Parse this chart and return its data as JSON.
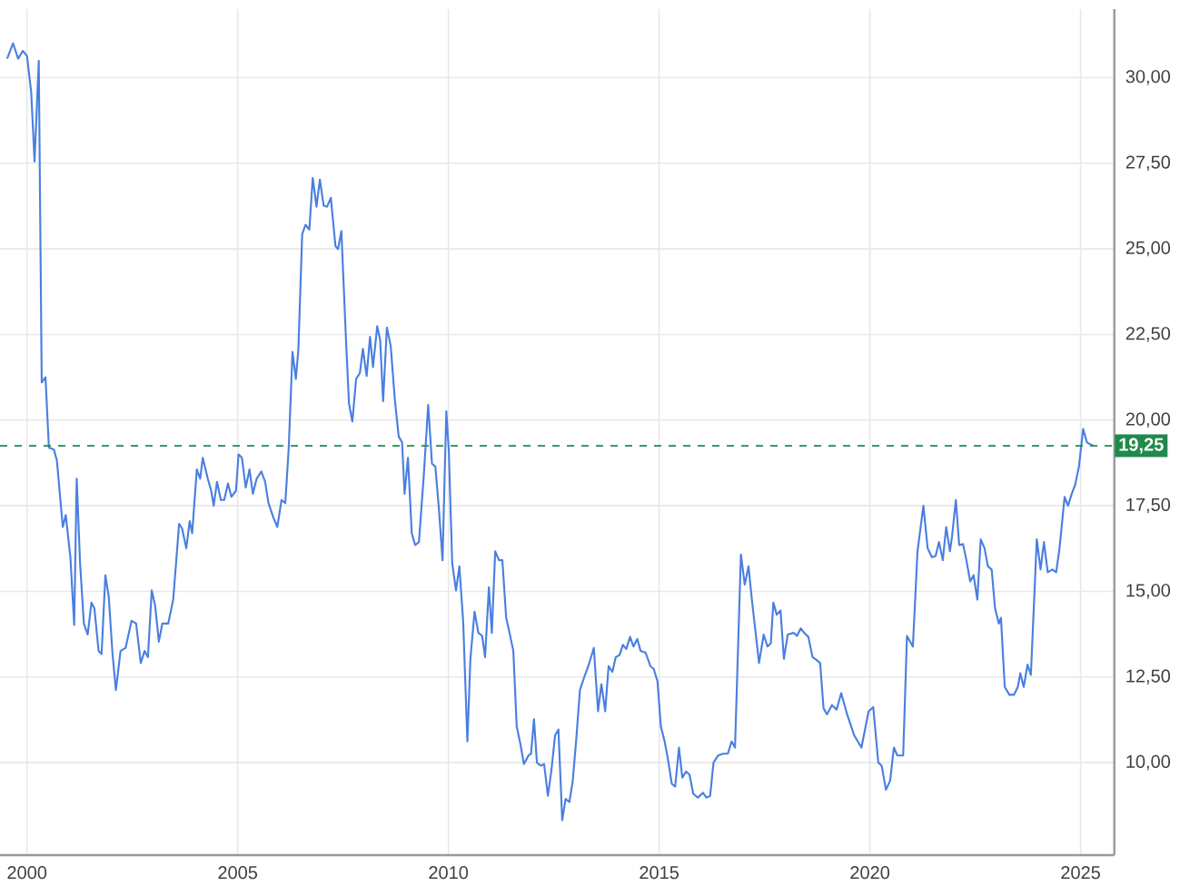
{
  "chart_data": {
    "type": "line",
    "x": [
      1999.53,
      1999.67,
      1999.79,
      1999.9,
      2000.0,
      2000.1,
      2000.18,
      2000.28,
      2000.35,
      2000.44,
      2000.52,
      2000.64,
      2000.71,
      2000.85,
      2000.92,
      2001.03,
      2001.12,
      2001.18,
      2001.26,
      2001.35,
      2001.44,
      2001.53,
      2001.6,
      2001.7,
      2001.77,
      2001.86,
      2001.94,
      2002.03,
      2002.11,
      2002.22,
      2002.34,
      2002.48,
      2002.59,
      2002.7,
      2002.79,
      2002.87,
      2002.96,
      2003.04,
      2003.13,
      2003.21,
      2003.35,
      2003.47,
      2003.61,
      2003.68,
      2003.78,
      2003.86,
      2003.92,
      2004.03,
      2004.11,
      2004.17,
      2004.29,
      2004.37,
      2004.43,
      2004.51,
      2004.6,
      2004.68,
      2004.77,
      2004.85,
      2004.96,
      2005.02,
      2005.1,
      2005.19,
      2005.28,
      2005.36,
      2005.45,
      2005.56,
      2005.65,
      2005.73,
      2005.85,
      2005.94,
      2006.04,
      2006.13,
      2006.21,
      2006.3,
      2006.38,
      2006.44,
      2006.53,
      2006.61,
      2006.7,
      2006.78,
      2006.87,
      2006.95,
      2007.04,
      2007.12,
      2007.21,
      2007.32,
      2007.38,
      2007.46,
      2007.57,
      2007.64,
      2007.72,
      2007.81,
      2007.9,
      2007.97,
      2008.06,
      2008.14,
      2008.21,
      2008.31,
      2008.38,
      2008.45,
      2008.54,
      2008.63,
      2008.73,
      2008.82,
      2008.9,
      2008.96,
      2009.04,
      2009.13,
      2009.21,
      2009.3,
      2009.41,
      2009.52,
      2009.61,
      2009.69,
      2009.78,
      2009.86,
      2009.95,
      2010.01,
      2010.09,
      2010.18,
      2010.26,
      2010.35,
      2010.45,
      2010.52,
      2010.62,
      2010.71,
      2010.8,
      2010.87,
      2010.96,
      2011.03,
      2011.11,
      2011.2,
      2011.28,
      2011.37,
      2011.45,
      2011.54,
      2011.62,
      2011.71,
      2011.79,
      2011.9,
      2011.96,
      2012.03,
      2012.1,
      2012.19,
      2012.27,
      2012.36,
      2012.44,
      2012.53,
      2012.61,
      2012.7,
      2012.78,
      2012.87,
      2012.95,
      2013.04,
      2013.12,
      2013.24,
      2013.32,
      2013.45,
      2013.55,
      2013.63,
      2013.72,
      2013.8,
      2013.89,
      2013.97,
      2014.06,
      2014.14,
      2014.22,
      2014.31,
      2014.39,
      2014.48,
      2014.56,
      2014.68,
      2014.79,
      2014.87,
      2014.96,
      2015.04,
      2015.13,
      2015.21,
      2015.3,
      2015.38,
      2015.47,
      2015.55,
      2015.64,
      2015.72,
      2015.81,
      2015.92,
      2016.04,
      2016.12,
      2016.21,
      2016.29,
      2016.4,
      2016.52,
      2016.63,
      2016.72,
      2016.8,
      2016.94,
      2017.03,
      2017.12,
      2017.2,
      2017.37,
      2017.48,
      2017.57,
      2017.65,
      2017.71,
      2017.79,
      2017.88,
      2017.96,
      2018.05,
      2018.19,
      2018.27,
      2018.36,
      2018.44,
      2018.54,
      2018.64,
      2018.73,
      2018.82,
      2018.9,
      2018.98,
      2019.1,
      2019.21,
      2019.32,
      2019.46,
      2019.63,
      2019.8,
      2019.97,
      2020.08,
      2020.2,
      2020.28,
      2020.38,
      2020.48,
      2020.57,
      2020.65,
      2020.79,
      2020.88,
      2021.02,
      2021.13,
      2021.27,
      2021.37,
      2021.47,
      2021.56,
      2021.64,
      2021.73,
      2021.81,
      2021.9,
      2021.95,
      2022.04,
      2022.12,
      2022.21,
      2022.29,
      2022.38,
      2022.46,
      2022.55,
      2022.63,
      2022.72,
      2022.8,
      2022.89,
      2022.97,
      2023.06,
      2023.11,
      2023.2,
      2023.31,
      2023.42,
      2023.51,
      2023.57,
      2023.65,
      2023.74,
      2023.82,
      2023.96,
      2024.05,
      2024.13,
      2024.22,
      2024.33,
      2024.42,
      2024.5,
      2024.62,
      2024.7,
      2024.79,
      2024.87,
      2024.96,
      2025.06,
      2025.15,
      2025.3
    ],
    "series": [
      {
        "color": "#4a7fe0",
        "values": [
          30.55,
          31.0,
          30.55,
          30.78,
          30.63,
          29.58,
          27.55,
          30.49,
          21.1,
          21.25,
          19.2,
          19.14,
          18.82,
          16.88,
          17.23,
          16.0,
          14.02,
          18.29,
          15.82,
          14.06,
          13.74,
          14.67,
          14.5,
          13.26,
          13.17,
          15.47,
          14.85,
          13.17,
          12.12,
          13.26,
          13.35,
          14.14,
          14.06,
          12.91,
          13.26,
          13.08,
          15.03,
          14.59,
          13.53,
          14.06,
          14.06,
          14.76,
          16.97,
          16.84,
          16.26,
          17.05,
          16.7,
          18.56,
          18.29,
          18.9,
          18.29,
          17.94,
          17.5,
          18.2,
          17.67,
          17.67,
          18.15,
          17.76,
          17.94,
          19.0,
          18.9,
          18.03,
          18.56,
          17.85,
          18.29,
          18.5,
          18.2,
          17.58,
          17.14,
          16.88,
          17.67,
          17.58,
          19.17,
          21.99,
          21.2,
          22.08,
          25.43,
          25.7,
          25.56,
          27.07,
          26.23,
          27.02,
          26.26,
          26.23,
          26.49,
          25.08,
          24.99,
          25.52,
          22.34,
          20.49,
          19.96,
          21.2,
          21.38,
          22.08,
          21.29,
          22.43,
          21.55,
          22.74,
          22.34,
          20.55,
          22.7,
          22.17,
          20.58,
          19.52,
          19.35,
          17.85,
          18.9,
          16.7,
          16.35,
          16.44,
          18.29,
          20.44,
          18.73,
          18.64,
          17.32,
          15.91,
          20.26,
          19.08,
          15.82,
          15.03,
          15.73,
          14.12,
          10.62,
          13.0,
          14.41,
          13.79,
          13.7,
          13.08,
          15.12,
          13.79,
          16.17,
          15.91,
          15.91,
          14.23,
          13.79,
          13.26,
          11.06,
          10.53,
          9.96,
          10.21,
          10.26,
          11.27,
          10.0,
          9.91,
          9.96,
          9.03,
          9.74,
          10.79,
          10.97,
          8.32,
          8.94,
          8.85,
          9.47,
          10.79,
          12.12,
          12.56,
          12.82,
          13.35,
          11.5,
          12.29,
          11.5,
          12.82,
          12.65,
          13.08,
          13.14,
          13.44,
          13.32,
          13.67,
          13.39,
          13.61,
          13.26,
          13.21,
          12.82,
          12.74,
          12.38,
          11.06,
          10.62,
          10.09,
          9.38,
          9.3,
          10.44,
          9.56,
          9.74,
          9.65,
          9.09,
          8.98,
          9.12,
          8.98,
          9.03,
          10.0,
          10.21,
          10.26,
          10.26,
          10.62,
          10.44,
          16.08,
          15.2,
          15.73,
          14.76,
          12.91,
          13.74,
          13.39,
          13.49,
          14.67,
          14.32,
          14.44,
          13.03,
          13.74,
          13.79,
          13.7,
          13.92,
          13.79,
          13.67,
          13.08,
          13.0,
          12.91,
          11.59,
          11.41,
          11.68,
          11.55,
          12.03,
          11.41,
          10.79,
          10.44,
          11.5,
          11.62,
          10.0,
          9.91,
          9.21,
          9.47,
          10.44,
          10.21,
          10.21,
          13.7,
          13.39,
          16.17,
          17.5,
          16.26,
          16.0,
          16.03,
          16.44,
          15.91,
          16.88,
          16.17,
          16.61,
          17.67,
          16.35,
          16.38,
          15.91,
          15.29,
          15.47,
          14.76,
          16.52,
          16.26,
          15.73,
          15.64,
          14.5,
          14.06,
          14.23,
          12.21,
          11.98,
          11.98,
          12.21,
          12.61,
          12.21,
          12.86,
          12.56,
          16.52,
          15.64,
          16.44,
          15.56,
          15.64,
          15.56,
          16.26,
          17.76,
          17.5,
          17.85,
          18.11,
          18.64,
          19.74,
          19.35,
          19.25
        ]
      }
    ],
    "xlim": [
      1999.36,
      2025.8
    ],
    "ylim": [
      7.3,
      32.0
    ],
    "xticks": [
      2000,
      2005,
      2010,
      2015,
      2020,
      2025
    ],
    "yticks": [
      {
        "value": 10,
        "label": "10,00"
      },
      {
        "value": 12.5,
        "label": "12,50"
      },
      {
        "value": 15,
        "label": "15,00"
      },
      {
        "value": 17.5,
        "label": "17,50"
      },
      {
        "value": 20,
        "label": "20,00"
      },
      {
        "value": 22.5,
        "label": "22,50"
      },
      {
        "value": 25,
        "label": "25,00"
      },
      {
        "value": 27.5,
        "label": "27,50"
      },
      {
        "value": 30,
        "label": "30,00"
      }
    ],
    "ref_lines": [
      {
        "axis": "y",
        "value": 19.25,
        "label": "19,25",
        "color": "#1f8a4c",
        "line_style": "dashed"
      }
    ],
    "grid": true,
    "marker": "none",
    "line_style": "solid"
  }
}
